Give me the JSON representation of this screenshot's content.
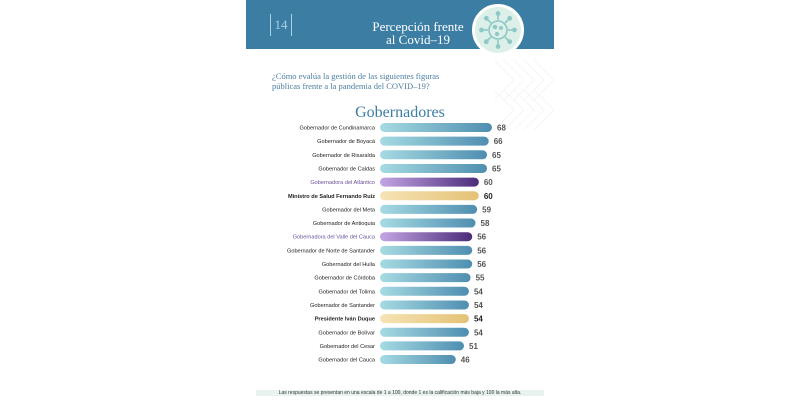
{
  "header": {
    "page_number": "14",
    "title_line1": "Percepción frente",
    "title_line2": "al Covid–19",
    "icon": "virus-icon"
  },
  "question_line1": "¿Cómo evalúa la gestión de las siguientes figuras",
  "question_line2": "públicas frente a la pandemia del COVID–19?",
  "footer_note": "Las respuestas se presentan en una escala de 1 a 100, donde 1 es la calificación más baja y 100 la más alta.",
  "colors": {
    "header": "#3c7ea3",
    "governor_bar": "#4f8eb0",
    "governor_bar_light": "#a6dbe3",
    "governora_bar": "#4a2c7a",
    "governora_bar_light": "#c4a5e3",
    "highlight_bar": "#e4c276",
    "highlight_bar_light": "#f6e3b5"
  },
  "chart_data": {
    "type": "bar",
    "orientation": "horizontal",
    "title": "Gobernadores",
    "xlim": [
      0,
      68
    ],
    "grid": false,
    "categories": [
      "Gobernador de Cundinamarca",
      "Gobernador de Boyacá",
      "Gobernador de Risaralda",
      "Gobernador de Caldas",
      "Gobernadora del Atlántico",
      "Ministro de Salud Fernando Ruiz",
      "Gobernador del Meta",
      "Gobernador de Antioquia",
      "Gobernadora del Valle del Cauca",
      "Gobernador de Norte de Santander",
      "Gobernador del Huila",
      "Gobernador de Córdoba",
      "Gobernador del Tolima",
      "Gobernador de Santander",
      "Presidente Iván Duque",
      "Gobernador de Bolívar",
      "Gobernador del Cesar",
      "Gobernador del Cauca"
    ],
    "values": [
      68,
      66,
      65,
      65,
      60,
      60,
      59,
      58,
      56,
      56,
      56,
      55,
      54,
      54,
      54,
      54,
      51,
      46
    ],
    "value_labels": [
      "68",
      "66",
      "65",
      "65",
      "60",
      "60",
      "59",
      "58",
      "56",
      "56",
      "56",
      "55",
      "54",
      "54",
      "54",
      "54",
      "51",
      "46"
    ],
    "styles": [
      "gov",
      "gov",
      "gov",
      "gov",
      "female",
      "highlight",
      "gov",
      "gov",
      "female",
      "gov",
      "gov",
      "gov",
      "gov",
      "gov",
      "highlight",
      "gov",
      "gov",
      "gov"
    ]
  }
}
